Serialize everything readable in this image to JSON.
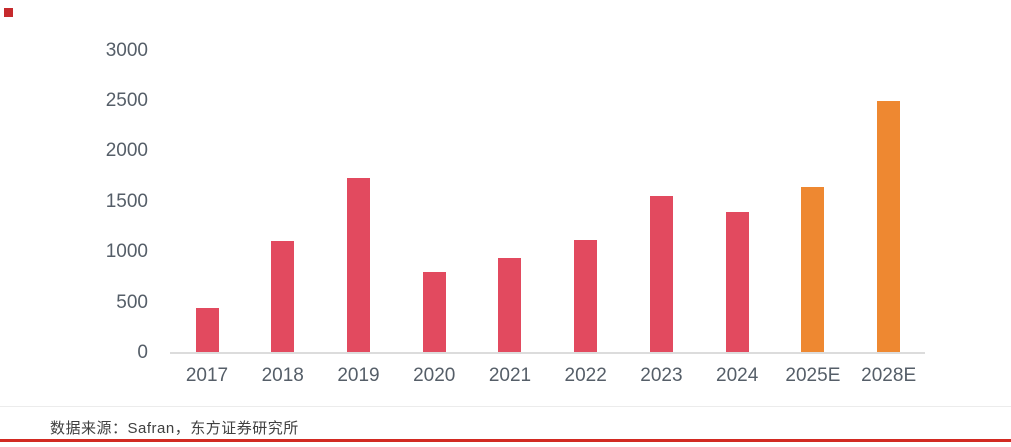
{
  "page": {
    "title_bullet_color": "#c62a2d"
  },
  "chart_data": {
    "type": "bar",
    "title": "",
    "xlabel": "",
    "ylabel": "",
    "categories": [
      "2017",
      "2018",
      "2019",
      "2020",
      "2021",
      "2022",
      "2023",
      "2024",
      "2025E",
      "2028E"
    ],
    "values": [
      450,
      1110,
      1740,
      800,
      940,
      1120,
      1560,
      1400,
      1650,
      2500
    ],
    "bar_colors": [
      "#e24a5f",
      "#e24a5f",
      "#e24a5f",
      "#e24a5f",
      "#e24a5f",
      "#e24a5f",
      "#e24a5f",
      "#e24a5f",
      "#ee8831",
      "#ee8831"
    ],
    "ylim": [
      0,
      3000
    ],
    "yticks": [
      0,
      500,
      1000,
      1500,
      2000,
      2500,
      3000
    ],
    "grid": false,
    "legend": null
  },
  "colors": {
    "bar_default": "#e24a5f",
    "bar_estimate": "#ee8831",
    "axis_text": "#555e68",
    "axis_line": "#dcdcdc",
    "accent_rule": "#d22a22"
  },
  "footer": {
    "source_text": "数据来源：Safran，东方证券研究所"
  }
}
